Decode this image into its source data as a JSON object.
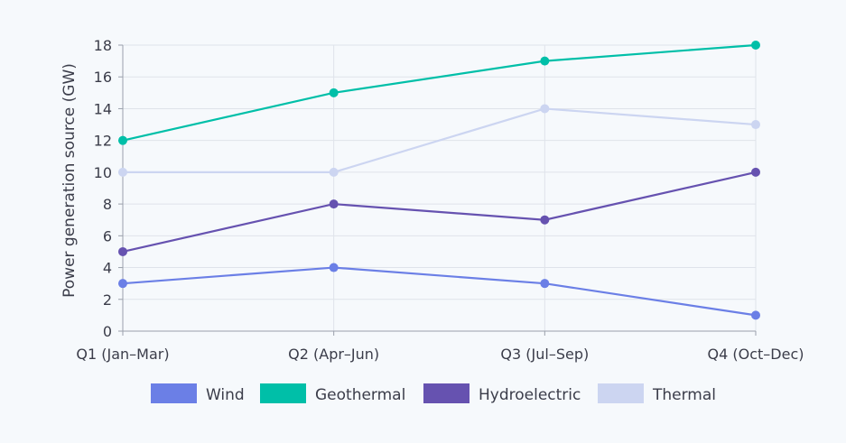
{
  "chart_data": {
    "type": "line",
    "title": "",
    "xlabel": "",
    "ylabel": "Power generation source (GW)",
    "categories": [
      "Q1 (Jan–Mar)",
      "Q2 (Apr–Jun)",
      "Q3 (Jul–Sep)",
      "Q4 (Oct–Dec)"
    ],
    "ylim": [
      0,
      18
    ],
    "yticks": [
      0,
      2,
      4,
      6,
      8,
      10,
      12,
      14,
      16,
      18
    ],
    "grid": true,
    "legend_position": "bottom",
    "series": [
      {
        "name": "Wind",
        "color": "#6b7fe6",
        "values": [
          3,
          4,
          3,
          1
        ]
      },
      {
        "name": "Geothermal",
        "color": "#00bfa8",
        "values": [
          12,
          15,
          17,
          18
        ]
      },
      {
        "name": "Hydroelectric",
        "color": "#6652b0",
        "values": [
          5,
          8,
          7,
          10
        ]
      },
      {
        "name": "Thermal",
        "color": "#ccd5f1",
        "values": [
          10,
          10,
          14,
          13
        ]
      }
    ]
  }
}
